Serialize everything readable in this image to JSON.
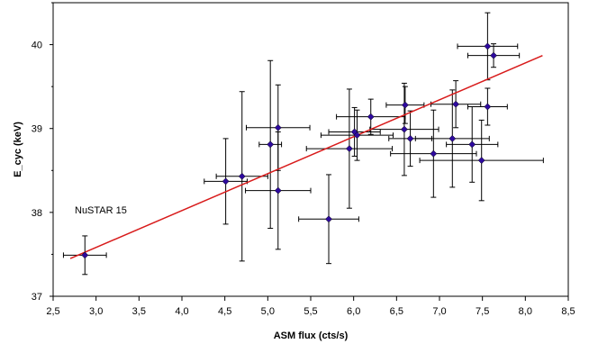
{
  "chart_data": {
    "type": "scatter",
    "title": "",
    "xlabel": "ASM flux  (cts/s)",
    "ylabel": "E_cyc (keV)",
    "xlim": [
      2.5,
      8.5
    ],
    "ylim": [
      37,
      40.5
    ],
    "x_ticks": [
      "2,5",
      "3,0",
      "3,5",
      "4,0",
      "4,5",
      "5,0",
      "5,5",
      "6,0",
      "6,5",
      "7,0",
      "7,5",
      "8,0",
      "8,5"
    ],
    "x_tick_values": [
      2.5,
      3.0,
      3.5,
      4.0,
      4.5,
      5.0,
      5.5,
      6.0,
      6.5,
      7.0,
      7.5,
      8.0,
      8.5
    ],
    "y_ticks": [
      "37",
      "38",
      "39",
      "40"
    ],
    "y_tick_values": [
      37,
      38,
      39,
      40
    ],
    "grid": false,
    "annotation": "NuSTAR 15",
    "marker_color": "#2e0a9e",
    "fit_color": "#d81b1b",
    "fit_line": {
      "x": [
        2.7,
        8.2
      ],
      "y": [
        37.45,
        39.87
      ]
    },
    "points": [
      {
        "x": 2.87,
        "y": 37.49,
        "xerr": 0.25,
        "yerr": 0.23
      },
      {
        "x": 4.51,
        "y": 38.37,
        "xerr": 0.25,
        "yerr": 0.51
      },
      {
        "x": 4.7,
        "y": 38.43,
        "xerr": 0.3,
        "yerr": 1.01
      },
      {
        "x": 5.03,
        "y": 38.81,
        "xerr": 0.13,
        "yerr": 1.0
      },
      {
        "x": 5.12,
        "y": 39.01,
        "xerr": 0.37,
        "yerr": 0.51
      },
      {
        "x": 5.12,
        "y": 38.26,
        "xerr": 0.38,
        "yerr": 0.7
      },
      {
        "x": 5.71,
        "y": 37.92,
        "xerr": 0.35,
        "yerr": 0.53
      },
      {
        "x": 5.95,
        "y": 38.76,
        "xerr": 0.5,
        "yerr": 0.71
      },
      {
        "x": 6.01,
        "y": 38.96,
        "xerr": 0.3,
        "yerr": 0.29
      },
      {
        "x": 6.04,
        "y": 38.92,
        "xerr": 0.42,
        "yerr": 0.3
      },
      {
        "x": 6.2,
        "y": 39.14,
        "xerr": 0.4,
        "yerr": 0.21
      },
      {
        "x": 6.6,
        "y": 39.28,
        "xerr": 0.22,
        "yerr": 0.22
      },
      {
        "x": 6.59,
        "y": 38.99,
        "xerr": 0.4,
        "yerr": 0.55
      },
      {
        "x": 6.66,
        "y": 38.88,
        "xerr": 0.25,
        "yerr": 0.33
      },
      {
        "x": 6.93,
        "y": 38.7,
        "xerr": 0.5,
        "yerr": 0.52
      },
      {
        "x": 7.15,
        "y": 38.88,
        "xerr": 0.43,
        "yerr": 0.58
      },
      {
        "x": 7.19,
        "y": 39.29,
        "xerr": 0.29,
        "yerr": 0.28
      },
      {
        "x": 7.38,
        "y": 38.81,
        "xerr": 0.3,
        "yerr": 0.45
      },
      {
        "x": 7.49,
        "y": 38.62,
        "xerr": 0.72,
        "yerr": 0.48
      },
      {
        "x": 7.56,
        "y": 39.26,
        "xerr": 0.23,
        "yerr": 0.22
      },
      {
        "x": 7.56,
        "y": 39.98,
        "xerr": 0.35,
        "yerr": 0.4
      },
      {
        "x": 7.63,
        "y": 39.87,
        "xerr": 0.3,
        "yerr": 0.14
      }
    ]
  }
}
